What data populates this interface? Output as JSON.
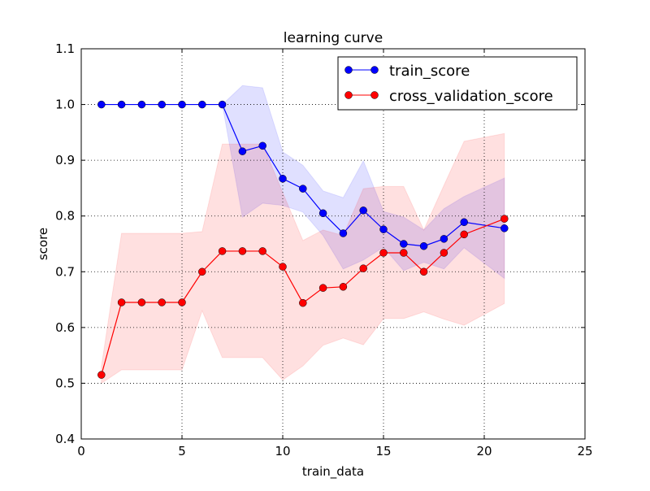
{
  "chart_data": {
    "type": "line",
    "title": "learning curve",
    "xlabel": "train_data",
    "ylabel": "score",
    "xlim": [
      0,
      25
    ],
    "ylim": [
      0.4,
      1.1
    ],
    "xticks": [
      "0",
      "5",
      "10",
      "15",
      "20",
      "25"
    ],
    "yticks": [
      "0.4",
      "0.5",
      "0.6",
      "0.7",
      "0.8",
      "0.9",
      "1.0",
      "1.1"
    ],
    "grid": true,
    "legend_position": "top-right",
    "x": [
      1,
      2,
      3,
      4,
      5,
      6,
      7,
      8,
      9,
      10,
      11,
      12,
      13,
      14,
      15,
      16,
      17,
      18,
      19,
      21
    ],
    "series": [
      {
        "name": "train_score",
        "color": "#0000ff",
        "values": [
          1.0,
          1.0,
          1.0,
          1.0,
          1.0,
          1.0,
          1.0,
          0.916,
          0.926,
          0.867,
          0.849,
          0.805,
          0.769,
          0.81,
          0.776,
          0.75,
          0.746,
          0.759,
          0.789,
          0.778
        ],
        "band_upper": [
          1.0,
          1.0,
          1.0,
          1.0,
          1.0,
          1.0,
          1.0,
          1.034,
          1.03,
          0.915,
          0.891,
          0.845,
          0.833,
          0.899,
          0.808,
          0.798,
          0.775,
          0.813,
          0.835,
          0.868
        ],
        "band_lower": [
          1.0,
          1.0,
          1.0,
          1.0,
          1.0,
          1.0,
          1.0,
          0.798,
          0.823,
          0.819,
          0.807,
          0.765,
          0.705,
          0.721,
          0.744,
          0.702,
          0.717,
          0.705,
          0.743,
          0.688
        ]
      },
      {
        "name": "cross_validation_score",
        "color": "#ff0000",
        "values": [
          0.515,
          0.645,
          0.645,
          0.645,
          0.645,
          0.7,
          0.737,
          0.737,
          0.737,
          0.709,
          0.644,
          0.671,
          0.673,
          0.706,
          0.734,
          0.734,
          0.7,
          0.734,
          0.767,
          0.795
        ],
        "band_upper": [
          0.53,
          0.769,
          0.769,
          0.769,
          0.769,
          0.772,
          0.929,
          0.929,
          0.929,
          0.842,
          0.756,
          0.775,
          0.765,
          0.849,
          0.853,
          0.853,
          0.775,
          0.855,
          0.934,
          0.948
        ],
        "band_lower": [
          0.5,
          0.524,
          0.524,
          0.524,
          0.524,
          0.63,
          0.546,
          0.546,
          0.546,
          0.506,
          0.531,
          0.568,
          0.581,
          0.569,
          0.616,
          0.616,
          0.628,
          0.615,
          0.604,
          0.643
        ]
      }
    ]
  }
}
